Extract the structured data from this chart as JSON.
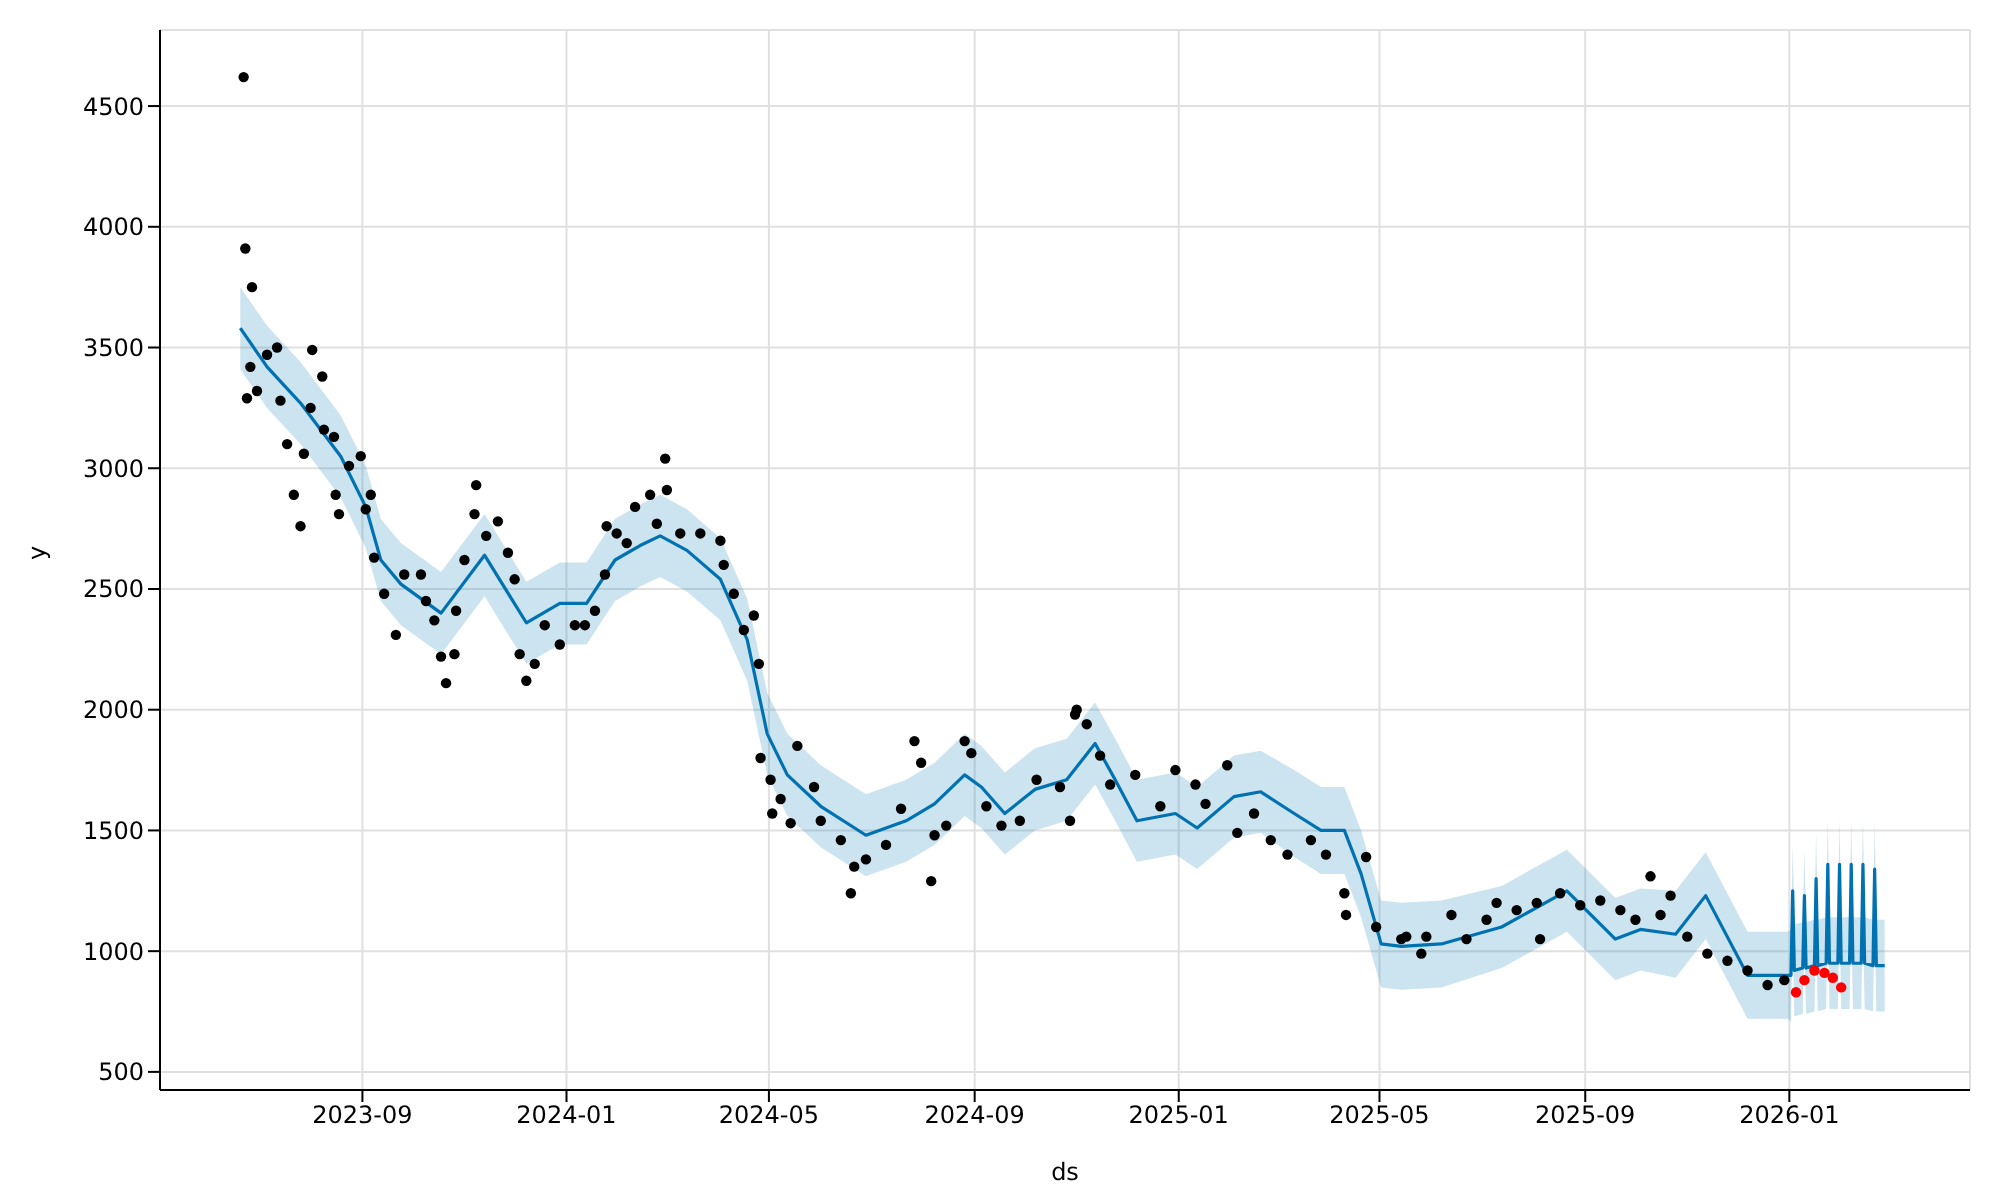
{
  "chart_data": {
    "type": "line",
    "xlabel": "ds",
    "ylabel": "y",
    "grid": true,
    "xlim": [
      "2023-05-03",
      "2026-04-19"
    ],
    "xticks": [
      "2023-09",
      "2024-01",
      "2024-05",
      "2024-09",
      "2025-01",
      "2025-05",
      "2025-09",
      "2026-01"
    ],
    "ylim": [
      425,
      4815
    ],
    "yticks": [
      500,
      1000,
      1500,
      2000,
      2500,
      3000,
      3500,
      4000,
      4500
    ],
    "series": [
      {
        "color": "#0072b2",
        "x": [
          "2023-06-20",
          "2023-07-06",
          "2023-07-26",
          "2023-08-19",
          "2023-09-03",
          "2023-09-12",
          "2023-09-24",
          "2023-10-18",
          "2023-11-13",
          "2023-12-08",
          "2023-12-28",
          "2024-01-13",
          "2024-01-30",
          "2024-02-14",
          "2024-02-26",
          "2024-03-13",
          "2024-04-02",
          "2024-04-18",
          "2024-04-30",
          "2024-05-12",
          "2024-06-01",
          "2024-06-28",
          "2024-07-22",
          "2024-08-08",
          "2024-08-26",
          "2024-09-05",
          "2024-09-19",
          "2024-10-07",
          "2024-10-26",
          "2024-11-12",
          "2024-11-24",
          "2024-12-07",
          "2024-12-30",
          "2025-01-12",
          "2025-02-03",
          "2025-02-19",
          "2025-03-11",
          "2025-03-27",
          "2025-04-10",
          "2025-04-20",
          "2025-05-02",
          "2025-05-14",
          "2025-06-07",
          "2025-07-13",
          "2025-08-21",
          "2025-09-19",
          "2025-10-04",
          "2025-10-25",
          "2025-11-12",
          "2025-12-07",
          "2025-12-31",
          "2026-01-02",
          "2026-01-03",
          "2026-01-04",
          "2026-01-09",
          "2026-01-10",
          "2026-01-11",
          "2026-01-16",
          "2026-01-17",
          "2026-01-18",
          "2026-01-23",
          "2026-01-24",
          "2026-01-25",
          "2026-01-30",
          "2026-01-31",
          "2026-02-01",
          "2026-02-06",
          "2026-02-07",
          "2026-02-08",
          "2026-02-13",
          "2026-02-14",
          "2026-02-15",
          "2026-02-20",
          "2026-02-21",
          "2026-02-22",
          "2026-02-27"
        ],
        "values": [
          3580,
          3420,
          3270,
          3050,
          2840,
          2620,
          2520,
          2400,
          2640,
          2360,
          2440,
          2440,
          2620,
          2680,
          2720,
          2660,
          2540,
          2290,
          1900,
          1730,
          1600,
          1480,
          1540,
          1610,
          1730,
          1680,
          1570,
          1670,
          1710,
          1860,
          1710,
          1540,
          1570,
          1510,
          1640,
          1660,
          1570,
          1500,
          1500,
          1320,
          1030,
          1020,
          1030,
          1100,
          1250,
          1050,
          1090,
          1070,
          1230,
          900,
          900,
          900,
          1250,
          920,
          930,
          1230,
          930,
          940,
          1300,
          940,
          950,
          1360,
          950,
          950,
          1360,
          950,
          950,
          1360,
          950,
          950,
          1360,
          950,
          940,
          1340,
          940,
          940
        ],
        "lower": [
          3410,
          3250,
          3100,
          2880,
          2670,
          2450,
          2350,
          2230,
          2470,
          2190,
          2270,
          2270,
          2450,
          2510,
          2550,
          2490,
          2370,
          2120,
          1730,
          1560,
          1430,
          1310,
          1370,
          1440,
          1560,
          1510,
          1400,
          1500,
          1540,
          1690,
          1540,
          1370,
          1400,
          1340,
          1470,
          1490,
          1390,
          1320,
          1320,
          1140,
          850,
          840,
          850,
          930,
          1080,
          880,
          920,
          890,
          1050,
          720,
          720,
          710,
          1060,
          730,
          740,
          1040,
          740,
          750,
          1110,
          750,
          760,
          1170,
          760,
          760,
          1170,
          760,
          760,
          1170,
          760,
          760,
          1170,
          760,
          750,
          1150,
          750,
          750
        ],
        "upper": [
          3750,
          3590,
          3440,
          3220,
          3010,
          2790,
          2690,
          2570,
          2810,
          2530,
          2610,
          2610,
          2790,
          2850,
          2890,
          2830,
          2710,
          2460,
          2070,
          1900,
          1770,
          1650,
          1710,
          1780,
          1900,
          1850,
          1740,
          1840,
          1880,
          2030,
          1880,
          1710,
          1740,
          1680,
          1810,
          1830,
          1750,
          1680,
          1680,
          1500,
          1210,
          1200,
          1210,
          1270,
          1420,
          1220,
          1260,
          1250,
          1410,
          1080,
          1080,
          1090,
          1440,
          1110,
          1120,
          1420,
          1120,
          1130,
          1490,
          1130,
          1140,
          1550,
          1140,
          1140,
          1550,
          1140,
          1140,
          1550,
          1140,
          1140,
          1550,
          1140,
          1130,
          1530,
          1130,
          1130
        ]
      },
      {
        "type": "scatter",
        "color": "#000000",
        "x": [
          "2023-06-22",
          "2023-06-23",
          "2023-06-24",
          "2023-06-26",
          "2023-06-27",
          "2023-06-30",
          "2023-07-06",
          "2023-07-12",
          "2023-07-14",
          "2023-07-18",
          "2023-07-22",
          "2023-07-26",
          "2023-07-28",
          "2023-08-01",
          "2023-08-02",
          "2023-08-08",
          "2023-08-09",
          "2023-08-15",
          "2023-08-16",
          "2023-08-18",
          "2023-08-24",
          "2023-08-31",
          "2023-09-03",
          "2023-09-06",
          "2023-09-08",
          "2023-09-14",
          "2023-09-21",
          "2023-09-26",
          "2023-10-06",
          "2023-10-09",
          "2023-10-14",
          "2023-10-18",
          "2023-10-21",
          "2023-10-26",
          "2023-10-27",
          "2023-11-01",
          "2023-11-07",
          "2023-11-08",
          "2023-11-14",
          "2023-11-21",
          "2023-11-27",
          "2023-12-01",
          "2023-12-04",
          "2023-12-08",
          "2023-12-13",
          "2023-12-19",
          "2023-12-28",
          "2024-01-06",
          "2024-01-12",
          "2024-01-18",
          "2024-01-24",
          "2024-01-25",
          "2024-01-31",
          "2024-02-06",
          "2024-02-11",
          "2024-02-20",
          "2024-02-24",
          "2024-02-29",
          "2024-03-01",
          "2024-03-09",
          "2024-03-21",
          "2024-04-02",
          "2024-04-04",
          "2024-04-10",
          "2024-04-16",
          "2024-04-22",
          "2024-04-25",
          "2024-04-26",
          "2024-05-02",
          "2024-05-03",
          "2024-05-08",
          "2024-05-14",
          "2024-05-18",
          "2024-05-28",
          "2024-06-01",
          "2024-06-13",
          "2024-06-19",
          "2024-06-21",
          "2024-06-28",
          "2024-07-10",
          "2024-07-19",
          "2024-07-27",
          "2024-07-31",
          "2024-08-06",
          "2024-08-08",
          "2024-08-15",
          "2024-08-26",
          "2024-08-30",
          "2024-09-08",
          "2024-09-17",
          "2024-09-28",
          "2024-10-08",
          "2024-10-22",
          "2024-10-28",
          "2024-10-31",
          "2024-11-01",
          "2024-11-07",
          "2024-11-15",
          "2024-11-21",
          "2024-12-06",
          "2024-12-21",
          "2024-12-30",
          "2025-01-11",
          "2025-01-17",
          "2025-01-30",
          "2025-02-05",
          "2025-02-15",
          "2025-02-25",
          "2025-03-07",
          "2025-03-21",
          "2025-03-30",
          "2025-04-10",
          "2025-04-11",
          "2025-04-23",
          "2025-04-29",
          "2025-05-14",
          "2025-05-17",
          "2025-05-26",
          "2025-05-29",
          "2025-06-13",
          "2025-06-22",
          "2025-07-04",
          "2025-07-10",
          "2025-07-22",
          "2025-08-03",
          "2025-08-05",
          "2025-08-17",
          "2025-08-29",
          "2025-09-10",
          "2025-09-22",
          "2025-10-01",
          "2025-10-10",
          "2025-10-16",
          "2025-10-22",
          "2025-11-01",
          "2025-11-13",
          "2025-11-25",
          "2025-12-07",
          "2025-12-19",
          "2025-12-29"
        ],
        "values": [
          4620,
          3910,
          3290,
          3420,
          3750,
          3320,
          3470,
          3500,
          3280,
          3100,
          2890,
          2760,
          3060,
          3250,
          3490,
          3380,
          3160,
          3130,
          2890,
          2810,
          3010,
          3050,
          2830,
          2890,
          2630,
          2480,
          2310,
          2560,
          2560,
          2450,
          2370,
          2220,
          2110,
          2230,
          2410,
          2620,
          2810,
          2930,
          2720,
          2780,
          2650,
          2540,
          2230,
          2120,
          2190,
          2350,
          2270,
          2350,
          2350,
          2410,
          2560,
          2760,
          2730,
          2690,
          2840,
          2890,
          2770,
          3040,
          2910,
          2730,
          2730,
          2700,
          2600,
          2480,
          2330,
          2390,
          2190,
          1800,
          1710,
          1570,
          1630,
          1530,
          1850,
          1680,
          1540,
          1460,
          1240,
          1350,
          1380,
          1440,
          1590,
          1870,
          1780,
          1290,
          1480,
          1520,
          1870,
          1820,
          1600,
          1520,
          1540,
          1710,
          1680,
          1540,
          1980,
          2000,
          1940,
          1810,
          1690,
          1730,
          1600,
          1750,
          1690,
          1610,
          1770,
          1490,
          1570,
          1460,
          1400,
          1460,
          1400,
          1240,
          1150,
          1390,
          1100,
          1050,
          1060,
          990,
          1060,
          1150,
          1050,
          1130,
          1200,
          1170,
          1200,
          1050,
          1240,
          1190,
          1210,
          1170,
          1130,
          1310,
          1150,
          1230,
          1060,
          990,
          960,
          920,
          860,
          880
        ]
      },
      {
        "type": "scatter",
        "color": "#ff0000",
        "x": [
          "2026-01-05",
          "2026-01-10",
          "2026-01-16",
          "2026-01-22",
          "2026-01-27",
          "2026-02-01"
        ],
        "values": [
          830,
          880,
          920,
          910,
          890,
          850
        ]
      }
    ]
  }
}
